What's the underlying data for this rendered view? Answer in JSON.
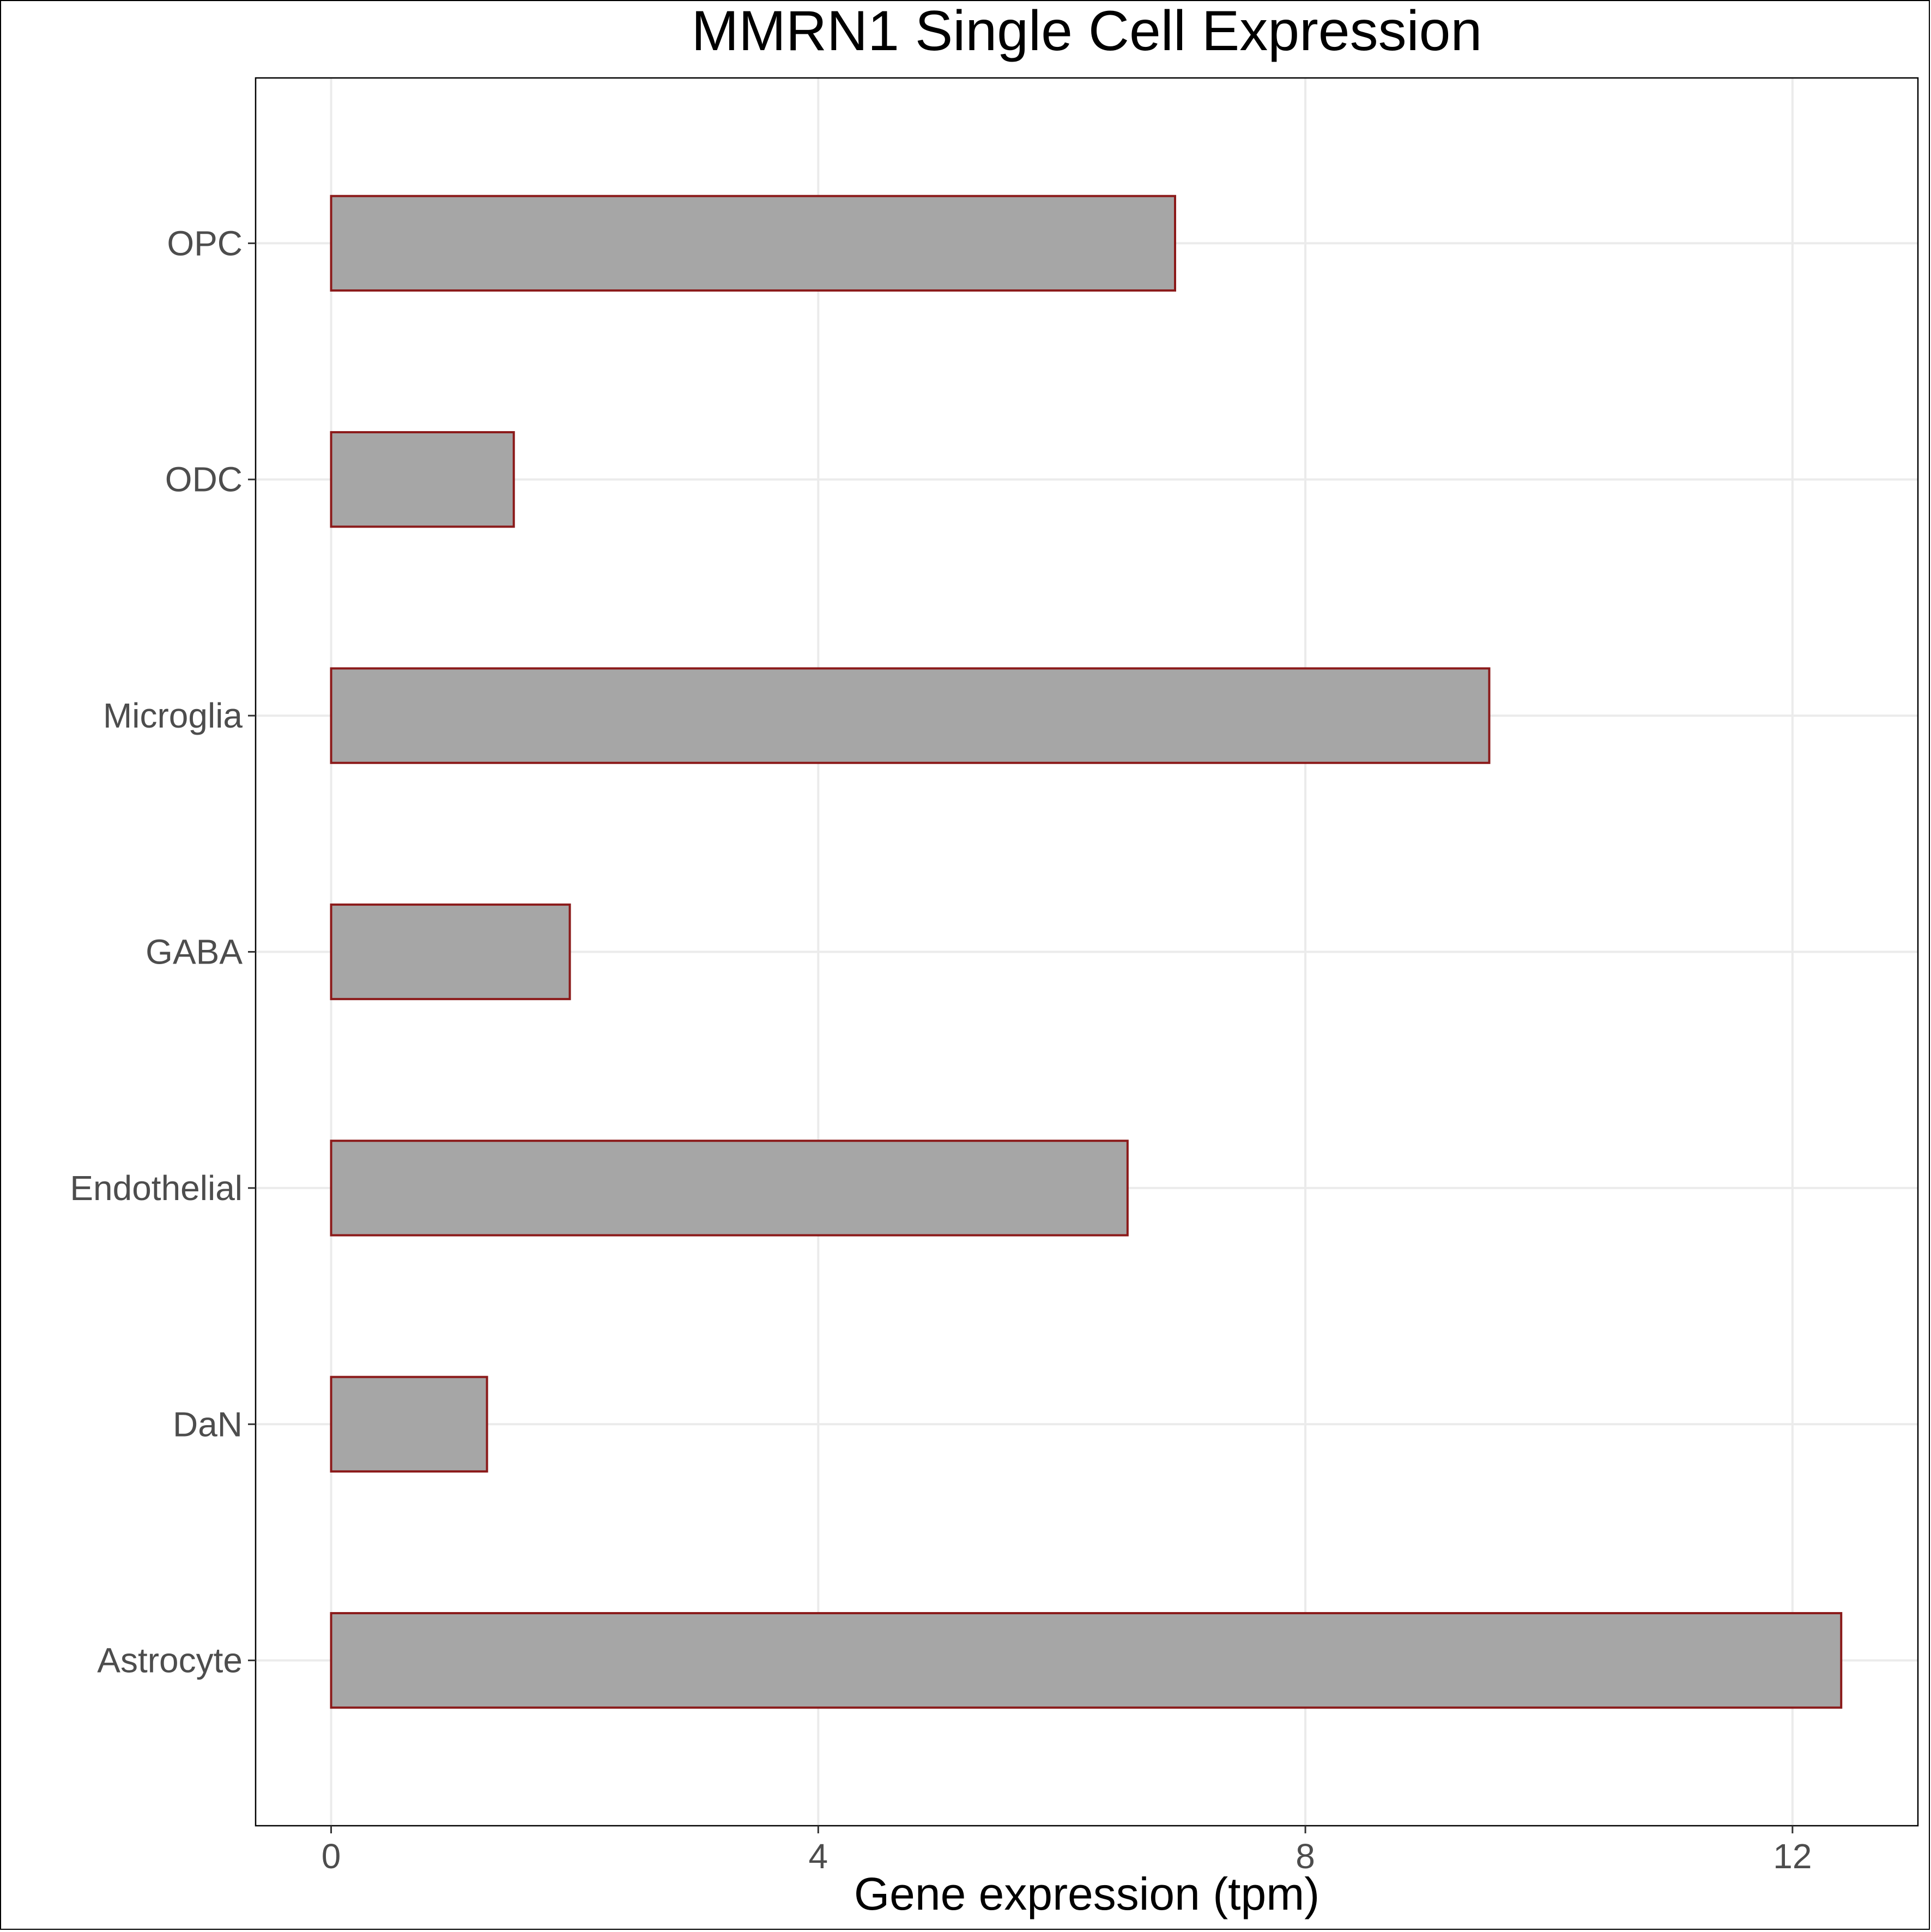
{
  "chart_data": {
    "type": "bar",
    "orientation": "horizontal",
    "title": "MMRN1 Single Cell Expression",
    "xlabel": "Gene expression (tpm)",
    "ylabel": "",
    "categories": [
      "Astrocyte",
      "DaN",
      "Endothelial",
      "GABA",
      "Microglia",
      "ODC",
      "OPC"
    ],
    "values": [
      12.4,
      1.28,
      6.54,
      1.96,
      9.51,
      1.5,
      6.93
    ],
    "xlim": [
      -0.62,
      13.03
    ],
    "xticks": [
      0,
      4,
      8,
      12
    ],
    "grid": true,
    "legend": "none",
    "colors": {
      "bar_fill": "#a6a6a6",
      "bar_stroke": "#8b1a1a",
      "grid": "#ebebeb",
      "panel_border": "#000000"
    }
  }
}
